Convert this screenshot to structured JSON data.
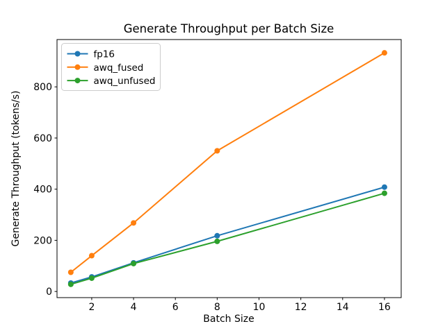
{
  "chart_data": {
    "type": "line",
    "title": "Generate Throughput per Batch Size",
    "xlabel": "Batch Size",
    "ylabel": "Generate Throughput (tokens/s)",
    "x": [
      1,
      2,
      4,
      8,
      16
    ],
    "series": [
      {
        "name": "fp16",
        "color": "#1f77b4",
        "values": [
          33,
          57,
          112,
          218,
          408
        ]
      },
      {
        "name": "awq_fused",
        "color": "#ff7f0e",
        "values": [
          75,
          140,
          268,
          550,
          933
        ]
      },
      {
        "name": "awq_unfused",
        "color": "#2ca02c",
        "values": [
          28,
          52,
          109,
          196,
          384
        ]
      }
    ],
    "xticks": [
      2,
      4,
      6,
      8,
      10,
      12,
      14,
      16
    ],
    "yticks": [
      0,
      200,
      400,
      600,
      800
    ],
    "xlim": [
      0.34,
      16.8
    ],
    "ylim": [
      -24,
      985
    ],
    "grid": false,
    "marker": "circle",
    "line_width": 2,
    "marker_radius": 4,
    "axis_color": "#000000",
    "legend": {
      "position": "upper left",
      "border_color": "#cccccc",
      "background": "#ffffff",
      "entries": [
        "fp16",
        "awq_fused",
        "awq_unfused"
      ]
    }
  }
}
